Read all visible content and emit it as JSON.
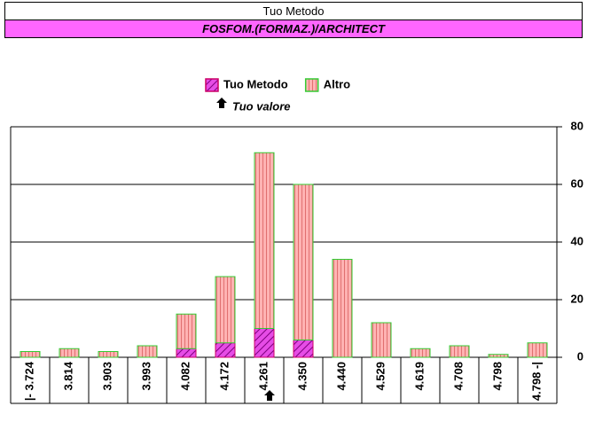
{
  "header": {
    "title": "Tuo Metodo",
    "subtitle": "FOSFOM.(FORMAZ.)/ARCHITECT"
  },
  "chart_data": {
    "type": "bar",
    "stacked": true,
    "annotation": "Tuo valore",
    "categories": [
      "|- 3.724",
      "3.814",
      "3.903",
      "3.993",
      "4.082",
      "4.172",
      "4.261",
      "4.350",
      "4.440",
      "4.529",
      "4.619",
      "4.708",
      "4.798",
      "4.798 -|"
    ],
    "series": [
      {
        "name": "Tuo Metodo",
        "color": "#e64ce6",
        "values": [
          0,
          0,
          0,
          0,
          3,
          5,
          10,
          6,
          0,
          0,
          0,
          0,
          0,
          0
        ]
      },
      {
        "name": "Altro",
        "color": "#ffb3b3",
        "values": [
          2,
          3,
          2,
          4,
          12,
          23,
          61,
          54,
          34,
          12,
          3,
          4,
          1,
          5
        ]
      }
    ],
    "ylim": [
      0,
      80
    ],
    "yticks": [
      0,
      20,
      40,
      60,
      80
    ],
    "grid": true
  }
}
